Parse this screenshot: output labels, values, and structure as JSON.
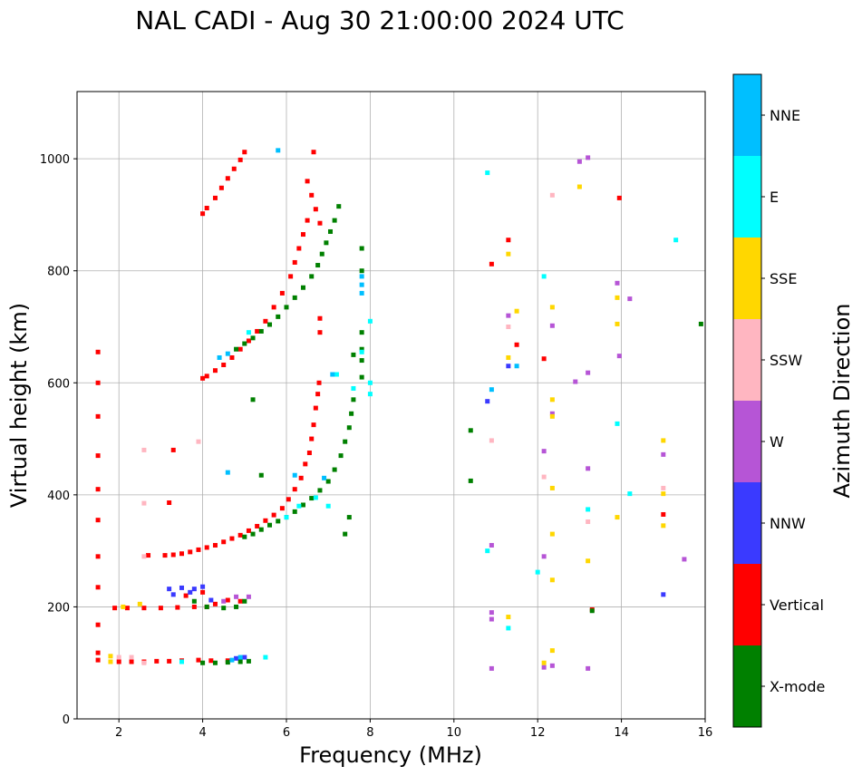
{
  "chart_data": {
    "type": "scatter",
    "title": "NAL CADI - Aug 30 21:00:00 2024 UTC",
    "xlabel": "Frequency (MHz)",
    "ylabel": "Virtual height (km)",
    "xlim": [
      1,
      16
    ],
    "ylim": [
      0,
      1120
    ],
    "xticks": [
      2,
      4,
      6,
      8,
      10,
      12,
      14,
      16
    ],
    "yticks": [
      0,
      200,
      400,
      600,
      800,
      1000
    ],
    "grid": true,
    "colorbar": {
      "label": "Azimuth Direction",
      "categories": [
        {
          "name": "X-mode",
          "color": "#008000"
        },
        {
          "name": "Vertical",
          "color": "#ff0000"
        },
        {
          "name": "NNW",
          "color": "#3a3aff"
        },
        {
          "name": "W",
          "color": "#b655d6"
        },
        {
          "name": "SSW",
          "color": "#ffb6c1"
        },
        {
          "name": "SSE",
          "color": "#ffd700"
        },
        {
          "name": "E",
          "color": "#00ffff"
        },
        {
          "name": "NNE",
          "color": "#00bfff"
        }
      ]
    },
    "series": [
      {
        "name": "Vertical",
        "points": [
          [
            1.5,
            655
          ],
          [
            1.5,
            600
          ],
          [
            1.5,
            540
          ],
          [
            1.5,
            470
          ],
          [
            1.5,
            410
          ],
          [
            1.5,
            355
          ],
          [
            1.5,
            290
          ],
          [
            1.5,
            235
          ],
          [
            1.5,
            168
          ],
          [
            1.5,
            118
          ],
          [
            1.5,
            105
          ],
          [
            2.0,
            102
          ],
          [
            2.3,
            102
          ],
          [
            2.6,
            102
          ],
          [
            2.9,
            103
          ],
          [
            3.2,
            103
          ],
          [
            3.5,
            104
          ],
          [
            3.9,
            105
          ],
          [
            4.2,
            104
          ],
          [
            4.6,
            104
          ],
          [
            1.9,
            198
          ],
          [
            2.2,
            198
          ],
          [
            2.6,
            198
          ],
          [
            3.0,
            198
          ],
          [
            3.4,
            199
          ],
          [
            3.8,
            200
          ],
          [
            4.1,
            200
          ],
          [
            4.3,
            205
          ],
          [
            4.6,
            212
          ],
          [
            4.9,
            210
          ],
          [
            3.6,
            220
          ],
          [
            4.0,
            226
          ],
          [
            3.2,
            386
          ],
          [
            3.3,
            480
          ],
          [
            2.7,
            292
          ],
          [
            3.1,
            292
          ],
          [
            3.3,
            293
          ],
          [
            3.5,
            295
          ],
          [
            3.7,
            298
          ],
          [
            3.9,
            302
          ],
          [
            4.1,
            306
          ],
          [
            4.3,
            310
          ],
          [
            4.5,
            316
          ],
          [
            4.7,
            322
          ],
          [
            4.9,
            328
          ],
          [
            5.1,
            336
          ],
          [
            5.3,
            344
          ],
          [
            5.5,
            354
          ],
          [
            5.7,
            364
          ],
          [
            5.9,
            376
          ],
          [
            6.05,
            392
          ],
          [
            6.2,
            410
          ],
          [
            6.35,
            430
          ],
          [
            6.45,
            455
          ],
          [
            6.55,
            475
          ],
          [
            6.6,
            500
          ],
          [
            6.65,
            525
          ],
          [
            6.7,
            555
          ],
          [
            6.75,
            580
          ],
          [
            6.78,
            600
          ],
          [
            4.0,
            608
          ],
          [
            4.1,
            612
          ],
          [
            4.3,
            622
          ],
          [
            4.5,
            632
          ],
          [
            4.7,
            645
          ],
          [
            4.9,
            660
          ],
          [
            5.1,
            675
          ],
          [
            5.3,
            692
          ],
          [
            5.5,
            710
          ],
          [
            5.7,
            735
          ],
          [
            5.9,
            760
          ],
          [
            6.1,
            790
          ],
          [
            6.2,
            815
          ],
          [
            6.3,
            840
          ],
          [
            6.4,
            865
          ],
          [
            6.5,
            890
          ],
          [
            6.5,
            960
          ],
          [
            6.6,
            935
          ],
          [
            6.7,
            910
          ],
          [
            6.8,
            885
          ],
          [
            6.8,
            690
          ],
          [
            6.8,
            715
          ],
          [
            4.0,
            902
          ],
          [
            4.1,
            912
          ],
          [
            4.3,
            930
          ],
          [
            4.45,
            948
          ],
          [
            4.6,
            965
          ],
          [
            4.75,
            982
          ],
          [
            4.9,
            998
          ],
          [
            5.0,
            1012
          ],
          [
            6.65,
            1012
          ],
          [
            10.9,
            812
          ],
          [
            11.3,
            855
          ],
          [
            11.5,
            668
          ],
          [
            12.15,
            643
          ],
          [
            13.3,
            195
          ],
          [
            13.95,
            930
          ],
          [
            15.0,
            365
          ]
        ]
      },
      {
        "name": "X-mode",
        "points": [
          [
            4.0,
            100
          ],
          [
            4.3,
            100
          ],
          [
            4.6,
            101
          ],
          [
            4.9,
            102
          ],
          [
            5.1,
            103
          ],
          [
            4.5,
            198
          ],
          [
            4.8,
            200
          ],
          [
            5.0,
            210
          ],
          [
            4.1,
            200
          ],
          [
            3.8,
            210
          ],
          [
            5.0,
            325
          ],
          [
            5.2,
            330
          ],
          [
            5.4,
            338
          ],
          [
            5.6,
            346
          ],
          [
            5.8,
            353
          ],
          [
            6.0,
            360
          ],
          [
            6.2,
            370
          ],
          [
            6.4,
            382
          ],
          [
            6.6,
            394
          ],
          [
            6.8,
            408
          ],
          [
            7.0,
            424
          ],
          [
            7.15,
            445
          ],
          [
            7.3,
            470
          ],
          [
            7.4,
            495
          ],
          [
            7.5,
            520
          ],
          [
            7.55,
            545
          ],
          [
            7.6,
            570
          ],
          [
            4.8,
            660
          ],
          [
            5.0,
            670
          ],
          [
            5.2,
            680
          ],
          [
            5.4,
            692
          ],
          [
            5.6,
            704
          ],
          [
            5.8,
            718
          ],
          [
            6.0,
            735
          ],
          [
            6.2,
            752
          ],
          [
            6.4,
            770
          ],
          [
            6.6,
            790
          ],
          [
            6.75,
            810
          ],
          [
            6.85,
            830
          ],
          [
            6.95,
            850
          ],
          [
            7.05,
            870
          ],
          [
            7.15,
            890
          ],
          [
            7.25,
            915
          ],
          [
            7.8,
            640
          ],
          [
            7.8,
            660
          ],
          [
            7.8,
            610
          ],
          [
            7.8,
            690
          ],
          [
            7.8,
            800
          ],
          [
            7.8,
            840
          ],
          [
            7.6,
            650
          ],
          [
            7.5,
            360
          ],
          [
            7.4,
            330
          ],
          [
            5.2,
            570
          ],
          [
            5.4,
            435
          ],
          [
            10.4,
            425
          ],
          [
            10.4,
            515
          ],
          [
            13.3,
            193
          ],
          [
            15.9,
            705
          ]
        ]
      },
      {
        "name": "NNW",
        "points": [
          [
            3.2,
            232
          ],
          [
            3.5,
            234
          ],
          [
            3.8,
            232
          ],
          [
            4.0,
            236
          ],
          [
            3.3,
            222
          ],
          [
            3.7,
            226
          ],
          [
            4.8,
            108
          ],
          [
            5.0,
            110
          ],
          [
            4.2,
            212
          ],
          [
            10.8,
            567
          ],
          [
            11.3,
            630
          ],
          [
            15.0,
            222
          ]
        ]
      },
      {
        "name": "W",
        "points": [
          [
            4.8,
            218
          ],
          [
            5.1,
            218
          ],
          [
            4.5,
            210
          ],
          [
            13.0,
            995
          ],
          [
            13.2,
            1002
          ],
          [
            13.9,
            778
          ],
          [
            14.2,
            750
          ],
          [
            12.35,
            702
          ],
          [
            11.3,
            720
          ],
          [
            13.95,
            648
          ],
          [
            13.2,
            618
          ],
          [
            12.9,
            602
          ],
          [
            12.35,
            545
          ],
          [
            12.15,
            478
          ],
          [
            13.2,
            447
          ],
          [
            15.0,
            472
          ],
          [
            15.5,
            285
          ],
          [
            12.15,
            290
          ],
          [
            10.9,
            310
          ],
          [
            10.9,
            190
          ],
          [
            10.9,
            178
          ],
          [
            10.9,
            90
          ],
          [
            12.35,
            95
          ],
          [
            12.15,
            92
          ],
          [
            13.2,
            90
          ]
        ]
      },
      {
        "name": "SSW",
        "points": [
          [
            2.0,
            110
          ],
          [
            2.3,
            110
          ],
          [
            2.6,
            100
          ],
          [
            2.6,
            290
          ],
          [
            2.6,
            385
          ],
          [
            2.6,
            480
          ],
          [
            3.9,
            495
          ],
          [
            12.35,
            935
          ],
          [
            10.9,
            497
          ],
          [
            12.15,
            432
          ],
          [
            13.2,
            352
          ],
          [
            15.0,
            412
          ],
          [
            11.3,
            700
          ]
        ]
      },
      {
        "name": "SSE",
        "points": [
          [
            1.8,
            112
          ],
          [
            1.8,
            102
          ],
          [
            2.1,
            200
          ],
          [
            2.5,
            205
          ],
          [
            12.35,
            735
          ],
          [
            11.5,
            728
          ],
          [
            13.9,
            752
          ],
          [
            13.9,
            705
          ],
          [
            11.3,
            645
          ],
          [
            11.3,
            830
          ],
          [
            12.35,
            570
          ],
          [
            12.35,
            540
          ],
          [
            12.35,
            412
          ],
          [
            12.35,
            330
          ],
          [
            12.35,
            248
          ],
          [
            12.35,
            122
          ],
          [
            12.15,
            100
          ],
          [
            13.2,
            282
          ],
          [
            13.9,
            360
          ],
          [
            15.0,
            497
          ],
          [
            15.0,
            402
          ],
          [
            15.0,
            345
          ],
          [
            13.0,
            950
          ],
          [
            11.3,
            182
          ]
        ]
      },
      {
        "name": "E",
        "points": [
          [
            3.5,
            102
          ],
          [
            5.5,
            110
          ],
          [
            6.0,
            360
          ],
          [
            6.3,
            380
          ],
          [
            6.7,
            395
          ],
          [
            7.6,
            590
          ],
          [
            8.0,
            580
          ],
          [
            8.0,
            600
          ],
          [
            8.0,
            710
          ],
          [
            7.8,
            655
          ],
          [
            7.2,
            615
          ],
          [
            10.8,
            975
          ],
          [
            12.15,
            790
          ],
          [
            11.3,
            162
          ],
          [
            12.0,
            262
          ],
          [
            13.9,
            527
          ],
          [
            14.2,
            402
          ],
          [
            13.2,
            374
          ],
          [
            10.8,
            300
          ],
          [
            15.3,
            855
          ],
          [
            7.0,
            380
          ],
          [
            5.1,
            690
          ]
        ]
      },
      {
        "name": "NNE",
        "points": [
          [
            4.7,
            105
          ],
          [
            4.9,
            110
          ],
          [
            4.6,
            440
          ],
          [
            10.9,
            588
          ],
          [
            11.5,
            630
          ],
          [
            7.8,
            760
          ],
          [
            7.8,
            775
          ],
          [
            7.8,
            790
          ],
          [
            7.1,
            615
          ],
          [
            6.9,
            430
          ],
          [
            6.2,
            435
          ],
          [
            4.4,
            645
          ],
          [
            4.6,
            652
          ],
          [
            5.8,
            1015
          ]
        ]
      }
    ]
  }
}
